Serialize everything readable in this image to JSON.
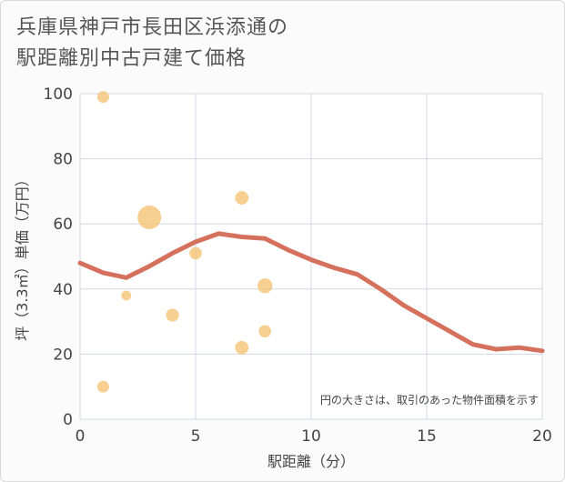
{
  "title_line1": "兵庫県神戸市長田区浜添通の",
  "title_line2": "駅距離別中古戸建て価格",
  "chart_data": {
    "type": "scatter",
    "title": "兵庫県神戸市長田区浜添通の駅距離別中古戸建て価格",
    "xlabel": "駅距離（分）",
    "ylabel": "坪（3.3㎡）単価（万円）",
    "xlim": [
      0,
      20
    ],
    "ylim": [
      0,
      100
    ],
    "xticks": [
      0,
      5,
      10,
      15,
      20
    ],
    "yticks": [
      0,
      20,
      40,
      60,
      80,
      100
    ],
    "grid": true,
    "note": "円の大きさは、取引のあった物件面積を示す",
    "bubble_color": "#f5c77e",
    "line_color": "#d4705c",
    "points": [
      {
        "x": 1,
        "y": 99,
        "size": 1
      },
      {
        "x": 1,
        "y": 10,
        "size": 1
      },
      {
        "x": 2,
        "y": 38,
        "size": 0.7
      },
      {
        "x": 3,
        "y": 62,
        "size": 4
      },
      {
        "x": 4,
        "y": 32,
        "size": 1.2
      },
      {
        "x": 5,
        "y": 51,
        "size": 1.1
      },
      {
        "x": 7,
        "y": 68,
        "size": 1.3
      },
      {
        "x": 7,
        "y": 22,
        "size": 1.3
      },
      {
        "x": 8,
        "y": 41,
        "size": 1.6
      },
      {
        "x": 8,
        "y": 27,
        "size": 1.1
      }
    ],
    "trend": {
      "x": [
        0,
        1,
        2,
        3,
        4,
        5,
        6,
        7,
        8,
        9,
        10,
        11,
        12,
        13,
        14,
        15,
        16,
        17,
        18,
        19,
        20
      ],
      "y": [
        48,
        45,
        43.5,
        47,
        51,
        54.5,
        57,
        56,
        55.5,
        52,
        49,
        46.5,
        44.5,
        40,
        35,
        31,
        27,
        23,
        21.5,
        22,
        21
      ]
    }
  }
}
